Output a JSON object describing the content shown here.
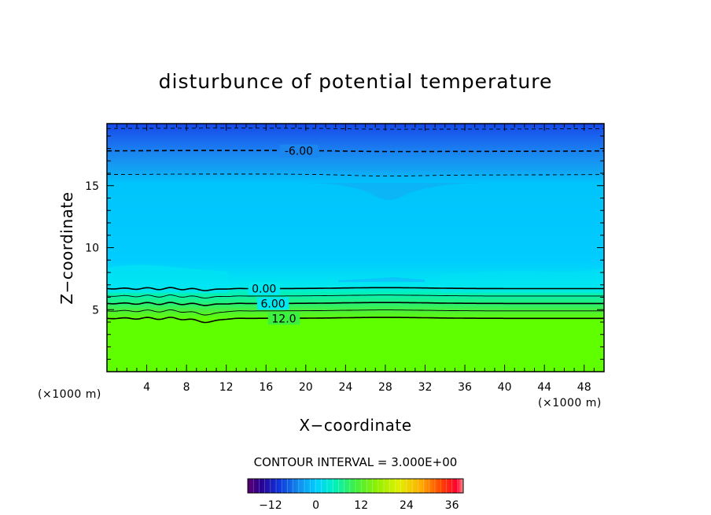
{
  "chart_data": {
    "type": "contour",
    "title": "disturbunce of potential temperature",
    "xlabel": "X−coordinate",
    "ylabel": "Z−coordinate",
    "x_unit_left": "(×1000 m)",
    "x_unit_right": "(×1000 m)",
    "xlim": [
      0,
      50
    ],
    "ylim": [
      0,
      20
    ],
    "x_ticks": [
      "4",
      "8",
      "12",
      "16",
      "20",
      "24",
      "28",
      "32",
      "36",
      "40",
      "44",
      "48"
    ],
    "y_ticks": [
      "5",
      "10",
      "15"
    ],
    "contour_interval_text": "CONTOUR INTERVAL = 3.000E+00",
    "contour_interval": 3.0,
    "contour_labels": [
      "-6.00",
      "0.00",
      "6.00",
      "12.0"
    ],
    "contours": [
      {
        "level": -3.0,
        "style": "dashed",
        "z": 15.9
      },
      {
        "level": -6.0,
        "style": "dashed",
        "z": 17.8
      },
      {
        "level": -9.0,
        "style": "dashed",
        "z": 19.6
      },
      {
        "level": 0.0,
        "style": "solid",
        "z": 6.7
      },
      {
        "level": 3.0,
        "style": "solid",
        "z": 6.1
      },
      {
        "level": 6.0,
        "style": "solid",
        "z": 5.5
      },
      {
        "level": 9.0,
        "style": "solid",
        "z": 4.9
      },
      {
        "level": 12.0,
        "style": "solid",
        "z": 4.3
      }
    ],
    "colorbar": {
      "range": [
        -18,
        39
      ],
      "ticks": [
        "−12",
        "0",
        "12",
        "24",
        "36"
      ],
      "tick_values": [
        -12,
        0,
        12,
        24,
        36
      ]
    },
    "colors": {
      "stratosphere_top": "#1448e8",
      "upper": "#1a78f0",
      "mid_blue": "#1e9cf0",
      "troposphere": "#00ccff",
      "lower_cyan": "#00e8f0",
      "transition": "#00f0a0",
      "surface_green": "#60ff00"
    }
  }
}
